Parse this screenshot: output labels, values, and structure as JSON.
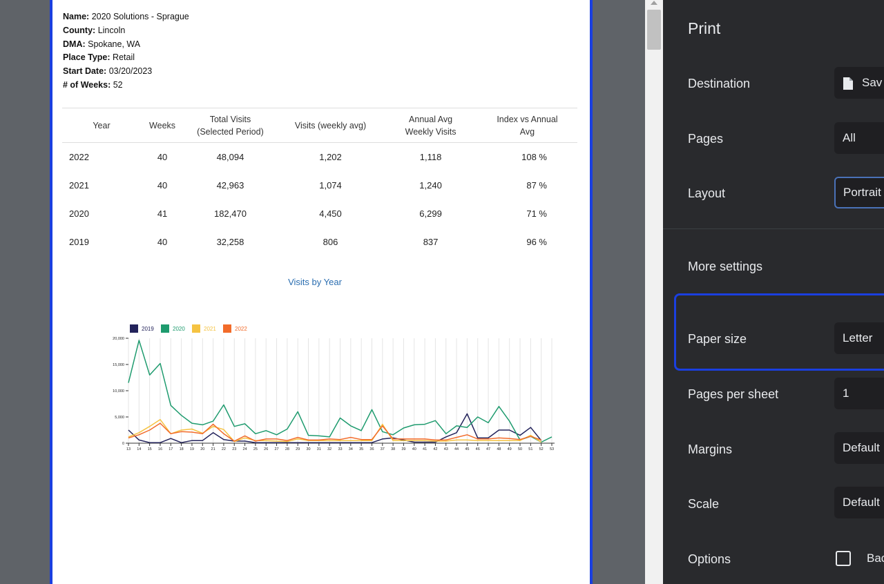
{
  "report": {
    "fields": [
      {
        "label": "Name:",
        "value": " 2020 Solutions - Sprague"
      },
      {
        "label": "County:",
        "value": " Lincoln"
      },
      {
        "label": "DMA:",
        "value": " Spokane, WA"
      },
      {
        "label": "Place Type:",
        "value": " Retail"
      },
      {
        "label": "Start Date:",
        "value": " 03/20/2023"
      },
      {
        "label": "# of Weeks:",
        "value": " 52"
      }
    ],
    "table": {
      "headers": [
        "Year",
        "Weeks",
        "Total Visits (Selected Period)",
        "Visits (weekly avg)",
        "Annual Avg Weekly Visits",
        "Index vs Annual Avg"
      ],
      "rows": [
        [
          "2022",
          "40",
          "48,094",
          "1,202",
          "1,118",
          "108 %"
        ],
        [
          "2021",
          "40",
          "42,963",
          "1,074",
          "1,240",
          "87 %"
        ],
        [
          "2020",
          "41",
          "182,470",
          "4,450",
          "6,299",
          "71 %"
        ],
        [
          "2019",
          "40",
          "32,258",
          "806",
          "837",
          "96 %"
        ]
      ]
    }
  },
  "chart_data": {
    "type": "line",
    "title": "Visits by Year",
    "x": [
      13,
      14,
      15,
      16,
      17,
      18,
      19,
      20,
      21,
      22,
      23,
      24,
      25,
      26,
      27,
      28,
      29,
      30,
      31,
      32,
      33,
      34,
      35,
      36,
      37,
      38,
      39,
      40,
      41,
      42,
      43,
      44,
      45,
      46,
      47,
      48,
      49,
      50,
      51,
      52,
      53
    ],
    "ylim": [
      0,
      20000
    ],
    "yticks": [
      "0",
      "5,000",
      "10,000",
      "15,000",
      "20,000"
    ],
    "legend_position": "top-left",
    "series": [
      {
        "name": "2019",
        "color": "#23235b",
        "values": [
          2500,
          600,
          100,
          100,
          900,
          100,
          500,
          500,
          2000,
          700,
          400,
          400,
          100,
          100,
          100,
          100,
          100,
          100,
          100,
          100,
          100,
          100,
          100,
          100,
          800,
          1000,
          600,
          200,
          200,
          200,
          1200,
          2000,
          5600,
          1000,
          1000,
          2500,
          2500,
          1500,
          3000,
          500,
          null
        ]
      },
      {
        "name": "2020",
        "color": "#1e9b6e",
        "values": [
          11500,
          19600,
          13000,
          15200,
          7200,
          5300,
          3800,
          3500,
          4200,
          7300,
          3200,
          3700,
          1800,
          2400,
          1600,
          2700,
          6000,
          1500,
          1400,
          1200,
          4800,
          3300,
          2400,
          6400,
          2200,
          1600,
          2900,
          3500,
          3600,
          4300,
          1800,
          3300,
          3000,
          5000,
          3900,
          7000,
          4200,
          600,
          1300,
          200,
          1200
        ]
      },
      {
        "name": "2021",
        "color": "#f5c342",
        "values": [
          1200,
          2000,
          3200,
          4500,
          1800,
          2500,
          2700,
          1900,
          3200,
          2600,
          300,
          1000,
          500,
          500,
          400,
          300,
          800,
          500,
          500,
          500,
          500,
          500,
          500,
          500,
          3600,
          500,
          500,
          500,
          500,
          400,
          400,
          600,
          600,
          500,
          500,
          500,
          500,
          500,
          1500,
          200,
          null
        ]
      },
      {
        "name": "2022",
        "color": "#f26b2a",
        "values": [
          1000,
          1600,
          2500,
          3800,
          1800,
          2200,
          2100,
          1800,
          3600,
          1800,
          400,
          1400,
          400,
          800,
          800,
          500,
          1100,
          600,
          600,
          800,
          700,
          1100,
          700,
          700,
          3300,
          800,
          800,
          800,
          800,
          600,
          600,
          1100,
          1600,
          800,
          800,
          1000,
          900,
          700,
          1300,
          600,
          null
        ]
      }
    ]
  },
  "print_panel": {
    "title": "Print",
    "destination_label": "Destination",
    "destination_value": "Sav",
    "pages_label": "Pages",
    "pages_value": "All",
    "layout_label": "Layout",
    "layout_value": "Portrait",
    "more_settings_label": "More settings",
    "paper_size_label": "Paper size",
    "paper_size_value": "Letter",
    "pages_per_sheet_label": "Pages per sheet",
    "pages_per_sheet_value": "1",
    "margins_label": "Margins",
    "margins_value": "Default",
    "scale_label": "Scale",
    "scale_value": "Default",
    "options_label": "Options",
    "options_checkbox_label": "Bac"
  }
}
